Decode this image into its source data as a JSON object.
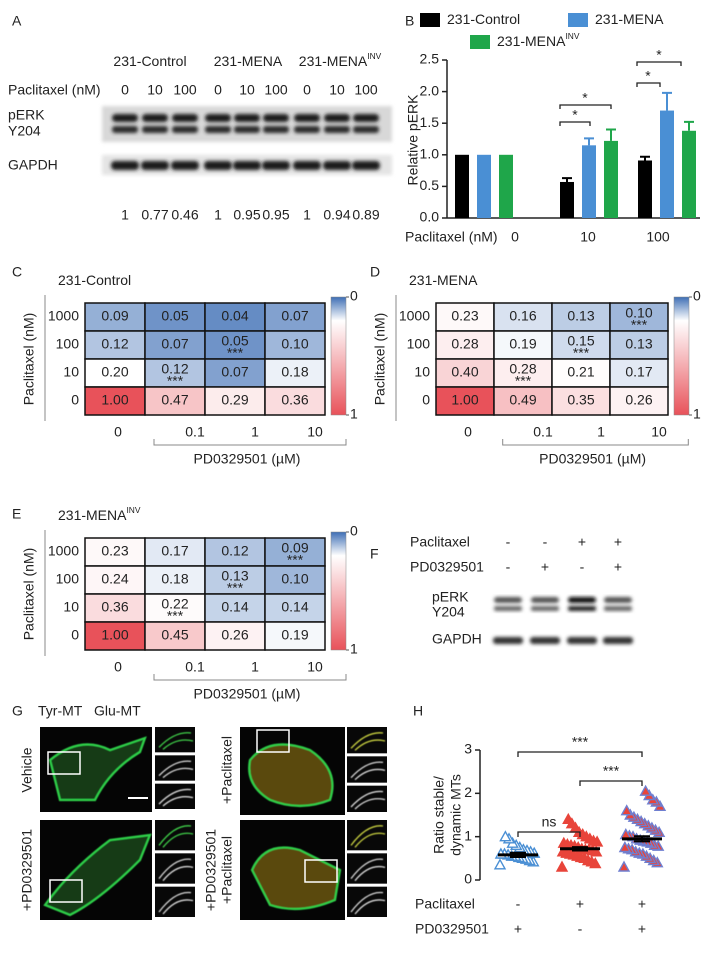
{
  "panel_labels": [
    "A",
    "B",
    "C",
    "D",
    "E",
    "F",
    "G",
    "H"
  ],
  "blot_a": {
    "groups": [
      {
        "name": "231-Control"
      },
      {
        "name": "231-MENA"
      },
      {
        "name": "231-MENA",
        "superscript": "INV"
      }
    ],
    "doses_label": "Paclitaxel (nM)",
    "doses": [
      0,
      10,
      100,
      0,
      10,
      100,
      0,
      10,
      100
    ],
    "rows": [
      "pERK",
      "Y204",
      "GAPDH"
    ],
    "quant": [
      1,
      0.77,
      0.46,
      1,
      0.95,
      0.95,
      1,
      0.94,
      0.89
    ]
  },
  "chart_data": [
    {
      "type": "bar",
      "ylabel": "Relative pERK",
      "xlabel": "Paclitaxel (nM)",
      "categories": [
        "0",
        "10",
        "100"
      ],
      "series": [
        {
          "name": "231-Control",
          "color": "#000000",
          "values": [
            1,
            0.57,
            0.91
          ],
          "errors": [
            null,
            0.06,
            0.06
          ]
        },
        {
          "name": "231-MENA",
          "color": "#4a8fd4",
          "values": [
            1,
            1.15,
            1.7
          ],
          "errors": [
            null,
            0.11,
            0.28
          ]
        },
        {
          "name": "231-MENA",
          "superscript": "INV",
          "color": "#1fa64a",
          "values": [
            1,
            1.22,
            1.38
          ],
          "errors": [
            null,
            0.18,
            0.14
          ]
        }
      ],
      "ylim": [
        0,
        2.5
      ],
      "yticks": [
        {
          "value": 0,
          "label": "0.0"
        },
        {
          "value": 0.5,
          "label": "0.5"
        },
        {
          "value": 1,
          "label": "1.0"
        },
        {
          "value": 1.5,
          "label": "1.5"
        },
        {
          "value": 2,
          "label": "2.0"
        },
        {
          "value": 2.5,
          "label": "2.5"
        }
      ],
      "annotations": [
        "*",
        "*",
        "*",
        "*"
      ]
    },
    {
      "type": "heatmap",
      "title": "231-Control",
      "ylabel": "Paclitaxel (nM)",
      "xlabel": "PD0329501 (µM)",
      "rows": [
        1000,
        100,
        10,
        0
      ],
      "columns": [
        0,
        0.1,
        1,
        10
      ],
      "values": [
        [
          0.09,
          0.05,
          0.04,
          0.07
        ],
        [
          0.12,
          0.07,
          0.05,
          0.1
        ],
        [
          0.2,
          0.12,
          0.07,
          0.18
        ],
        [
          1,
          0.47,
          0.29,
          0.36
        ]
      ],
      "value_labels": [
        [
          "0.09",
          "0.05",
          "0.04",
          "0.07"
        ],
        [
          "0.12",
          "0.07",
          "0.05",
          "0.10"
        ],
        [
          "0.20",
          "0.12",
          "0.07",
          "0.18"
        ],
        [
          "1.00",
          "0.47",
          "0.29",
          "0.36"
        ]
      ],
      "stars": [
        [
          null,
          null,
          null,
          null
        ],
        [
          null,
          null,
          "***",
          null
        ],
        [
          null,
          "***",
          null,
          null
        ],
        [
          null,
          null,
          null,
          null
        ]
      ],
      "colors": [
        "#3f6fb5",
        "#ffffff",
        "#e8525a"
      ],
      "colorbar_ticks": [
        0,
        1
      ]
    },
    {
      "type": "heatmap",
      "title": "231-MENA",
      "ylabel": "Paclitaxel (nM)",
      "xlabel": "PD0329501 (µM)",
      "rows": [
        1000,
        100,
        10,
        0
      ],
      "columns": [
        0,
        0.1,
        1,
        10
      ],
      "values": [
        [
          0.23,
          0.16,
          0.13,
          0.1
        ],
        [
          0.28,
          0.19,
          0.15,
          0.13
        ],
        [
          0.4,
          0.28,
          0.21,
          0.17
        ],
        [
          1,
          0.49,
          0.35,
          0.26
        ]
      ],
      "value_labels": [
        [
          "0.23",
          "0.16",
          "0.13",
          "0.10"
        ],
        [
          "0.28",
          "0.19",
          "0.15",
          "0.13"
        ],
        [
          "0.40",
          "0.28",
          "0.21",
          "0.17"
        ],
        [
          "1.00",
          "0.49",
          "0.35",
          "0.26"
        ]
      ],
      "stars": [
        [
          null,
          null,
          null,
          "***"
        ],
        [
          null,
          null,
          "***",
          null
        ],
        [
          null,
          "***",
          null,
          null
        ],
        [
          null,
          null,
          null,
          null
        ]
      ],
      "colors": [
        "#3f6fb5",
        "#ffffff",
        "#e8525a"
      ],
      "colorbar_ticks": [
        0,
        1
      ]
    },
    {
      "type": "heatmap",
      "title": "231-MENA",
      "title_superscript": "INV",
      "ylabel": "Paclitaxel (nM)",
      "xlabel": "PD0329501 (µM)",
      "rows": [
        1000,
        100,
        10,
        0
      ],
      "columns": [
        0,
        0.1,
        1,
        10
      ],
      "values": [
        [
          0.23,
          0.17,
          0.12,
          0.09
        ],
        [
          0.24,
          0.18,
          0.13,
          0.1
        ],
        [
          0.36,
          0.22,
          0.14,
          0.14
        ],
        [
          1,
          0.45,
          0.26,
          0.19
        ]
      ],
      "value_labels": [
        [
          "0.23",
          "0.17",
          "0.12",
          "0.09"
        ],
        [
          "0.24",
          "0.18",
          "0.13",
          "0.10"
        ],
        [
          "0.36",
          "0.22",
          "0.14",
          "0.14"
        ],
        [
          "1.00",
          "0.45",
          "0.26",
          "0.19"
        ]
      ],
      "stars": [
        [
          null,
          null,
          null,
          "***"
        ],
        [
          null,
          null,
          "***",
          null
        ],
        [
          null,
          "***",
          null,
          null
        ],
        [
          null,
          null,
          null,
          null
        ]
      ],
      "colors": [
        "#3f6fb5",
        "#ffffff",
        "#e8525a"
      ],
      "colorbar_ticks": [
        0,
        1
      ]
    },
    {
      "type": "scatter",
      "ylabel": [
        "Ratio stable/",
        "dynamic MTs"
      ],
      "ylim": [
        0,
        3
      ],
      "yticks": [
        0,
        1,
        2,
        3
      ],
      "series": [
        {
          "fill": "#ffffff",
          "stroke": "#4a8fd4",
          "mean": 0.58,
          "sem": 0.05,
          "values": [
            0.35,
            0.42,
            0.45,
            0.48,
            0.5,
            0.52,
            0.55,
            0.55,
            0.58,
            0.6,
            0.6,
            0.62,
            0.65,
            0.68,
            0.7,
            0.75,
            0.8,
            0.85,
            0.95,
            1.0
          ]
        },
        {
          "fill": "#e8443a",
          "stroke": "#e8443a",
          "mean": 0.72,
          "sem": 0.04,
          "values": [
            0.3,
            0.38,
            0.42,
            0.45,
            0.5,
            0.52,
            0.55,
            0.58,
            0.6,
            0.62,
            0.65,
            0.65,
            0.68,
            0.7,
            0.7,
            0.72,
            0.75,
            0.78,
            0.8,
            0.82,
            0.85,
            0.88,
            0.9,
            0.95,
            1.0,
            1.05,
            1.1,
            1.2,
            1.3,
            1.4
          ]
        },
        {
          "fill": "#e8443a",
          "stroke": "#6f7fd0",
          "mean": 0.95,
          "sem": 0.06,
          "values": [
            0.3,
            0.4,
            0.45,
            0.5,
            0.55,
            0.6,
            0.62,
            0.65,
            0.7,
            0.72,
            0.75,
            0.78,
            0.8,
            0.85,
            0.88,
            0.9,
            0.92,
            0.95,
            1.0,
            1.02,
            1.05,
            1.1,
            1.15,
            1.2,
            1.25,
            1.3,
            1.35,
            1.4,
            1.45,
            1.5,
            1.6,
            1.7,
            1.8,
            1.85,
            1.95,
            2.05
          ]
        }
      ],
      "comparisons": [
        "***",
        "***",
        "ns"
      ],
      "conditions": [
        {
          "name": "Paclitaxel",
          "signs": [
            "-",
            "+",
            "+"
          ]
        },
        {
          "name": "PD0329501",
          "signs": [
            "+",
            "-",
            "+"
          ]
        }
      ]
    }
  ],
  "blot_f": {
    "rows": [
      {
        "name": "Paclitaxel",
        "signs": [
          "-",
          "-",
          "+",
          "+"
        ]
      },
      {
        "name": "PD0329501",
        "signs": [
          "-",
          "+",
          "-",
          "+"
        ]
      }
    ],
    "bands": [
      "pERK",
      "Y204",
      "GAPDH"
    ]
  },
  "images_g": {
    "legend": [
      "Tyr-MT",
      "Glu-MT"
    ],
    "conditions": [
      "Vehicle",
      "+PD0329501",
      "+Paclitaxel",
      [
        "+PD0329501",
        "+Paclitaxel"
      ]
    ]
  }
}
